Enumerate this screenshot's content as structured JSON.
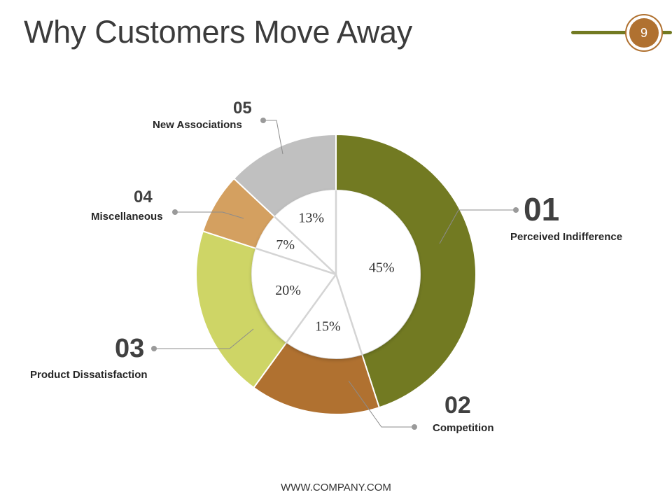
{
  "slide": {
    "title": "Why Customers Move Away",
    "page_number": "9",
    "footer": "WWW.COMPANY.COM"
  },
  "colors": {
    "accent_line": "#727a22",
    "badge": "#b07130"
  },
  "chart_data": {
    "type": "pie",
    "title": "",
    "legend": "none",
    "slices": [
      {
        "number": "01",
        "label": "Perceived Indifference",
        "value": 45,
        "value_label": "45%",
        "color": "#727a22"
      },
      {
        "number": "02",
        "label": "Competition",
        "value": 15,
        "value_label": "15%",
        "color": "#b07130"
      },
      {
        "number": "03",
        "label": "Product Dissatisfaction",
        "value": 20,
        "value_label": "20%",
        "color": "#ced566"
      },
      {
        "number": "04",
        "label": "Miscellaneous",
        "value": 7,
        "value_label": "7%",
        "color": "#d4a060"
      },
      {
        "number": "05",
        "label": "New Associations",
        "value": 13,
        "value_label": "13%",
        "color": "#c0c0c0"
      }
    ]
  }
}
